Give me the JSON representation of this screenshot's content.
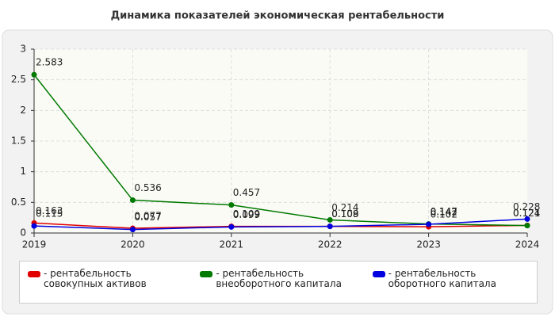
{
  "chart_data": {
    "type": "line",
    "title": "Динамика показателей экономическая рентабельности",
    "categories": [
      "2019",
      "2020",
      "2021",
      "2022",
      "2023",
      "2024"
    ],
    "series": [
      {
        "name": "рентабельность совокупных активов",
        "color": "#e00000",
        "values": [
          0.163,
          0.077,
          0.109,
          0.109,
          0.102,
          0.124
        ]
      },
      {
        "name": "рентабельность внеоборотного капитала",
        "color": "#007a00",
        "values": [
          2.583,
          0.536,
          0.457,
          0.214,
          0.147,
          0.121
        ]
      },
      {
        "name": "рентабельность оборотного капитала",
        "color": "#0000e0",
        "values": [
          0.115,
          0.057,
          0.099,
          0.108,
          0.142,
          0.228
        ]
      }
    ],
    "ylim": [
      0,
      3
    ],
    "yticks": [
      0,
      0.5,
      1,
      1.5,
      2,
      2.5,
      3
    ],
    "grid": true
  }
}
